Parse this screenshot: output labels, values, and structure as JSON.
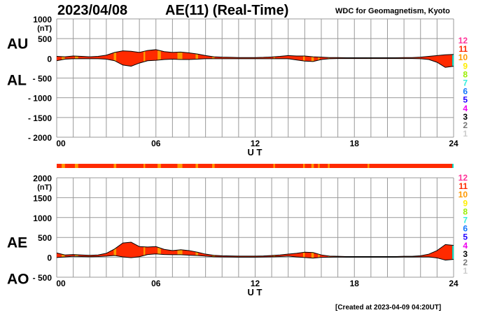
{
  "header": {
    "date": "2023/04/08",
    "title": "AE(11) (Real-Time)",
    "source": "WDC for Geomagnetism, Kyoto"
  },
  "footer": {
    "created": "[Created at 2023-04-09 04:20UT]"
  },
  "colors": {
    "grid": "#999999",
    "fill11": "#ff2a00",
    "fill10": "#ff9900",
    "fill7": "#00e5cc",
    "line": "#000000"
  },
  "station_legend": [
    {
      "label": "12",
      "color": "#ff3399"
    },
    {
      "label": "11",
      "color": "#ff2a00"
    },
    {
      "label": "10",
      "color": "#ff9900"
    },
    {
      "label": "9",
      "color": "#ffee00"
    },
    {
      "label": "8",
      "color": "#99ee00"
    },
    {
      "label": "7",
      "color": "#33eedd"
    },
    {
      "label": "6",
      "color": "#1177ff"
    },
    {
      "label": "5",
      "color": "#2200ff"
    },
    {
      "label": "4",
      "color": "#ee00ee"
    },
    {
      "label": "3",
      "color": "#000000"
    },
    {
      "label": "2",
      "color": "#777777"
    },
    {
      "label": "1",
      "color": "#cccccc"
    }
  ],
  "chart_data": [
    {
      "type": "area",
      "title": "AU / AL",
      "labels": {
        "upper": "AU",
        "lower": "AL"
      },
      "xlabel": "U T",
      "ylabel": "(nT)",
      "xlim": [
        0,
        24
      ],
      "ylim": [
        -2000,
        1000
      ],
      "xticks": [
        "00",
        "06",
        "12",
        "18",
        "24"
      ],
      "yticks": [
        "1000",
        "500",
        "0",
        "- 500",
        "- 1000",
        "- 1500",
        "- 2000"
      ],
      "ytick_values": [
        1000,
        500,
        0,
        -500,
        -1000,
        -1500,
        -2000
      ],
      "grid": true,
      "x": [
        0,
        0.5,
        1,
        1.5,
        2,
        2.5,
        3,
        3.5,
        4,
        4.5,
        5,
        5.5,
        6,
        6.5,
        7,
        7.5,
        8,
        8.5,
        9,
        9.5,
        10,
        10.5,
        11,
        11.5,
        12,
        12.5,
        13,
        13.5,
        14,
        14.5,
        15,
        15.5,
        16,
        16.5,
        17,
        17.5,
        18,
        18.5,
        19,
        19.5,
        20,
        20.5,
        21,
        21.5,
        22,
        22.5,
        23,
        23.5,
        24
      ],
      "series": [
        {
          "name": "AU",
          "values": [
            50,
            40,
            60,
            50,
            40,
            50,
            80,
            150,
            190,
            180,
            150,
            200,
            220,
            170,
            150,
            160,
            140,
            110,
            70,
            40,
            30,
            25,
            20,
            20,
            20,
            25,
            35,
            50,
            70,
            60,
            60,
            40,
            30,
            20,
            20,
            15,
            15,
            15,
            15,
            15,
            15,
            15,
            20,
            20,
            30,
            50,
            70,
            90,
            100
          ]
        },
        {
          "name": "AL",
          "values": [
            -60,
            -20,
            -10,
            -10,
            -10,
            -10,
            -20,
            -60,
            -170,
            -200,
            -120,
            -60,
            -50,
            -30,
            -20,
            -30,
            -30,
            -20,
            -10,
            -10,
            -10,
            -10,
            -10,
            -10,
            -10,
            -10,
            -10,
            -10,
            -10,
            -40,
            -70,
            -80,
            -30,
            -10,
            -5,
            -5,
            -5,
            -5,
            -5,
            -5,
            -5,
            -5,
            -5,
            -5,
            -10,
            -30,
            -100,
            -230,
            -200
          ]
        }
      ]
    },
    {
      "type": "area",
      "title": "AE / AO",
      "labels": {
        "upper": "AE",
        "lower": "AO"
      },
      "xlabel": "U T",
      "ylabel": "(nT)",
      "xlim": [
        0,
        24
      ],
      "ylim": [
        -500,
        2000
      ],
      "xticks": [
        "00",
        "06",
        "12",
        "18",
        "24"
      ],
      "yticks": [
        "2000",
        "1500",
        "1000",
        "500",
        "0",
        "- 500"
      ],
      "ytick_values": [
        2000,
        1500,
        1000,
        500,
        0,
        -500
      ],
      "grid": true,
      "x": [
        0,
        0.5,
        1,
        1.5,
        2,
        2.5,
        3,
        3.5,
        4,
        4.5,
        5,
        5.5,
        6,
        6.5,
        7,
        7.5,
        8,
        8.5,
        9,
        9.5,
        10,
        10.5,
        11,
        11.5,
        12,
        12.5,
        13,
        13.5,
        14,
        14.5,
        15,
        15.5,
        16,
        16.5,
        17,
        17.5,
        18,
        18.5,
        19,
        19.5,
        20,
        20.5,
        21,
        21.5,
        22,
        22.5,
        23,
        23.5,
        24
      ],
      "series": [
        {
          "name": "AE",
          "values": [
            110,
            60,
            70,
            60,
            50,
            60,
            100,
            210,
            360,
            380,
            270,
            260,
            270,
            200,
            170,
            190,
            170,
            130,
            80,
            50,
            40,
            35,
            30,
            30,
            30,
            35,
            45,
            60,
            80,
            100,
            130,
            120,
            60,
            30,
            25,
            20,
            20,
            20,
            20,
            20,
            20,
            20,
            25,
            25,
            40,
            80,
            170,
            320,
            300
          ]
        },
        {
          "name": "AO",
          "values": [
            -5,
            10,
            25,
            20,
            15,
            20,
            30,
            45,
            10,
            -10,
            15,
            70,
            85,
            70,
            65,
            65,
            55,
            45,
            30,
            15,
            10,
            8,
            5,
            5,
            5,
            8,
            13,
            20,
            30,
            10,
            -5,
            -20,
            0,
            5,
            8,
            5,
            5,
            5,
            5,
            5,
            5,
            5,
            8,
            8,
            10,
            10,
            -15,
            -70,
            -50
          ]
        }
      ]
    }
  ],
  "station_counts": {
    "default": 11,
    "segments": [
      {
        "from": 0.3,
        "to": 0.5,
        "count": 10
      },
      {
        "from": 1.1,
        "to": 1.3,
        "count": 10
      },
      {
        "from": 3.45,
        "to": 3.6,
        "count": 10
      },
      {
        "from": 5.25,
        "to": 5.35,
        "count": 10
      },
      {
        "from": 6.1,
        "to": 6.3,
        "count": 10
      },
      {
        "from": 7.3,
        "to": 7.6,
        "count": 10
      },
      {
        "from": 8.4,
        "to": 8.55,
        "count": 10
      },
      {
        "from": 9.4,
        "to": 9.55,
        "count": 10
      },
      {
        "from": 13.1,
        "to": 13.2,
        "count": 10
      },
      {
        "from": 14.9,
        "to": 15.0,
        "count": 10
      },
      {
        "from": 15.4,
        "to": 15.55,
        "count": 10
      },
      {
        "from": 15.8,
        "to": 15.9,
        "count": 10
      },
      {
        "from": 16.4,
        "to": 16.5,
        "count": 10
      },
      {
        "from": 18.8,
        "to": 18.9,
        "count": 10
      },
      {
        "from": 23.92,
        "to": 24,
        "count": 7
      }
    ]
  }
}
